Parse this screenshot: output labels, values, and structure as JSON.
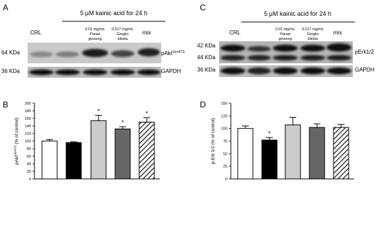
{
  "panels": {
    "a": {
      "letter": "A",
      "treatment": "5 μM kainic acid for 24 h",
      "lanes": [
        [
          "CRL"
        ],
        [
          "0.01 mg/mL",
          "Panax",
          "ginseng"
        ],
        [
          "0.017 mg/mL",
          "Gingko",
          "biloba"
        ],
        [
          "mix"
        ]
      ],
      "markers": [
        "64 KDa",
        "36 KDa"
      ],
      "proteins": [
        {
          "name": "pAkt",
          "sup": "Ser473"
        },
        {
          "name": "GAPDH"
        }
      ]
    },
    "c": {
      "letter": "C",
      "treatment": "5 μM kainic acid for 24 h",
      "lanes": [
        [
          "CRL"
        ],
        [
          "0.01 mg/mL",
          "Panax",
          "ginseng"
        ],
        [
          "0.017 mg/mL",
          "Gingko",
          "biloba"
        ],
        [
          "mix"
        ]
      ],
      "markers": [
        "42 KDa",
        "44 KDa",
        "36 KDa"
      ],
      "proteins": [
        {
          "name": "pErk1/2"
        },
        {
          "name": "GAPDH"
        }
      ]
    }
  },
  "chart_data": [
    {
      "type": "bar",
      "panel_label": "B",
      "ylabel": "pAkt",
      "ylabel_sup": "Ser473",
      "ylabel_rest": " (% of control)",
      "values": [
        100,
        96,
        154,
        132,
        150
      ],
      "errors": [
        4,
        2,
        14,
        6,
        12
      ],
      "significance": [
        null,
        null,
        "*",
        "*",
        "*"
      ],
      "fills": [
        "#ffffff",
        "#000000",
        "#cccccc",
        "#666666",
        "hatched"
      ],
      "ylim": [
        0,
        200
      ],
      "yticks": [
        0,
        20,
        40,
        60,
        80,
        100,
        120,
        140,
        160,
        180,
        200
      ]
    },
    {
      "type": "bar",
      "panel_label": "D",
      "ylabel": "p-Erk 1/2 (% of control)",
      "values": [
        100,
        77,
        107,
        102,
        102
      ],
      "errors": [
        5,
        5,
        15,
        7,
        6
      ],
      "significance": [
        null,
        "*",
        null,
        null,
        null
      ],
      "fills": [
        "#ffffff",
        "#000000",
        "#cccccc",
        "#666666",
        "hatched"
      ],
      "ylim": [
        0,
        150
      ],
      "yticks": [
        0,
        25,
        50,
        75,
        100,
        125,
        150
      ]
    }
  ]
}
